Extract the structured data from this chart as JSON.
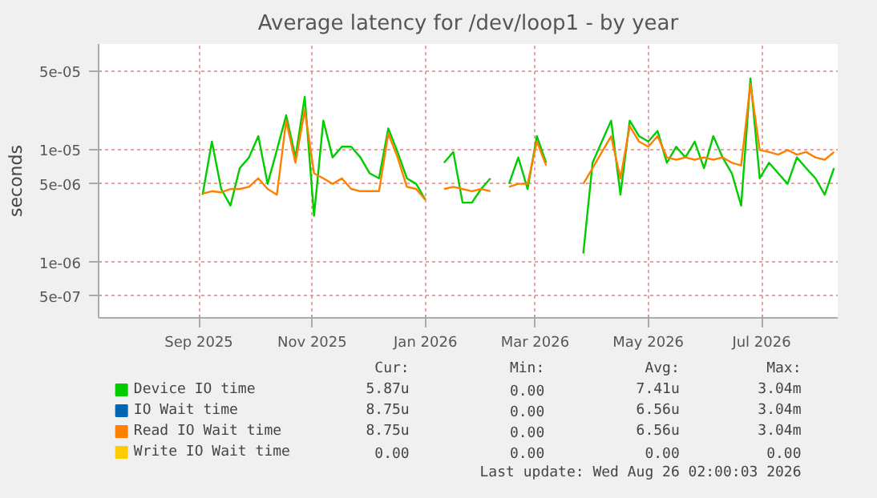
{
  "chart_data": {
    "type": "line",
    "title": "Average latency for /dev/loop1 - by year",
    "ylabel": "seconds",
    "x": [
      "2025-09-18",
      "2025-09-23",
      "2025-09-28",
      "2025-10-03",
      "2025-10-08",
      "2025-10-13",
      "2025-10-18",
      "2025-10-23",
      "2025-10-28",
      "2025-11-02",
      "2025-11-07",
      "2025-11-12",
      "2025-11-17",
      "2025-11-22",
      "2025-11-27",
      "2025-12-02",
      "2025-12-07",
      "2025-12-12",
      "2025-12-17",
      "2025-12-22",
      "2025-12-27",
      "2026-01-01",
      "2026-01-06",
      "2026-01-11",
      "2026-01-16",
      "2026-01-21",
      "2026-01-26",
      "2026-01-31",
      "2026-02-05",
      "2026-02-10",
      "2026-02-15",
      "2026-02-20",
      "2026-02-25",
      "2026-03-02",
      "2026-03-07",
      "2026-03-12",
      "2026-03-17",
      "2026-03-22",
      "2026-03-27",
      "2026-04-01",
      "2026-04-06",
      "2026-04-11",
      "2026-04-16",
      "2026-04-21",
      "2026-04-26",
      "2026-05-01",
      "2026-05-06",
      "2026-05-11",
      "2026-05-16",
      "2026-05-21",
      "2026-05-26",
      "2026-05-31",
      "2026-06-05",
      "2026-06-10",
      "2026-06-15",
      "2026-06-20",
      "2026-06-25",
      "2026-06-30",
      "2026-07-05",
      "2026-07-10",
      "2026-07-15",
      "2026-07-20",
      "2026-07-25",
      "2026-07-30",
      "2026-08-04",
      "2026-08-09",
      "2026-08-14",
      "2026-08-19",
      "2026-08-24"
    ],
    "series": [
      {
        "name": "Device IO time",
        "color": "#00cc00",
        "values": [
          4e-06,
          1.19e-05,
          4.5e-06,
          3.2e-06,
          6.9e-06,
          8.6e-06,
          1.33e-05,
          5e-06,
          1e-05,
          2.04e-05,
          8.6e-06,
          2.98e-05,
          2.6e-06,
          1.83e-05,
          8.6e-06,
          1.07e-05,
          1.07e-05,
          8.6e-06,
          6.2e-06,
          5.6e-06,
          1.56e-05,
          9.6e-06,
          5.6e-06,
          5e-06,
          3.6e-06,
          null,
          7.7e-06,
          9.6e-06,
          3.4e-06,
          3.4e-06,
          4.5e-06,
          5.6e-06,
          null,
          5e-06,
          8.6e-06,
          4.5e-06,
          1.33e-05,
          7.7e-06,
          null,
          null,
          null,
          1.2e-06,
          7.7e-06,
          1.19e-05,
          1.83e-05,
          4e-06,
          1.83e-05,
          1.33e-05,
          1.19e-05,
          1.48e-05,
          7.7e-06,
          1.07e-05,
          8.6e-06,
          1.19e-05,
          6.9e-06,
          1.33e-05,
          8.6e-06,
          6.2e-06,
          3.2e-06,
          4.35e-05,
          5.6e-06,
          7.7e-06,
          6.2e-06,
          5e-06,
          8.6e-06,
          6.9e-06,
          5.6e-06,
          4e-06,
          6.9e-06
        ]
      },
      {
        "name": "IO Wait time",
        "color": "#0066b3",
        "values": [
          null,
          null,
          null,
          null,
          null,
          null,
          null,
          null,
          null,
          null,
          null,
          null,
          null,
          null,
          null,
          null,
          null,
          null,
          null,
          null,
          null,
          null,
          null,
          null,
          null,
          null,
          null,
          null,
          null,
          null,
          null,
          null,
          null,
          null,
          null,
          null,
          null,
          null,
          null,
          null,
          null,
          null,
          null,
          null,
          null,
          null,
          null,
          null,
          null,
          null,
          null,
          null,
          null,
          null,
          null,
          null,
          null,
          null,
          null,
          null,
          null,
          null,
          null,
          null,
          null,
          null,
          null,
          null,
          null
        ]
      },
      {
        "name": "Read IO Wait time",
        "color": "#ff8000",
        "values": [
          4.1e-06,
          4.3e-06,
          4.2e-06,
          4.5e-06,
          4.5e-06,
          4.7e-06,
          5.6e-06,
          4.5e-06,
          4e-06,
          1.83e-05,
          7.7e-06,
          2.27e-05,
          6.2e-06,
          5.6e-06,
          5e-06,
          5.6e-06,
          4.5e-06,
          4.3e-06,
          4.3e-06,
          4.3e-06,
          1.4e-05,
          8.6e-06,
          4.7e-06,
          4.5e-06,
          3.6e-06,
          null,
          4.5e-06,
          4.7e-06,
          4.5e-06,
          4.3e-06,
          4.5e-06,
          4.3e-06,
          null,
          4.7e-06,
          5e-06,
          5e-06,
          1.19e-05,
          7.3e-06,
          null,
          null,
          null,
          5e-06,
          6.9e-06,
          9.6e-06,
          1.33e-05,
          5.6e-06,
          1.64e-05,
          1.19e-05,
          1.07e-05,
          1.33e-05,
          8.6e-06,
          8.2e-06,
          8.6e-06,
          8.2e-06,
          8.6e-06,
          8.2e-06,
          8.6e-06,
          7.7e-06,
          7.3e-06,
          3.9e-05,
          1e-05,
          9.6e-06,
          9.1e-06,
          1e-05,
          9.1e-06,
          9.6e-06,
          8.6e-06,
          8.2e-06,
          9.6e-06
        ]
      },
      {
        "name": "Write IO Wait time",
        "color": "#ffcc00",
        "values": [
          null,
          null,
          null,
          null,
          null,
          null,
          null,
          null,
          null,
          null,
          null,
          null,
          null,
          null,
          null,
          null,
          null,
          null,
          null,
          null,
          null,
          null,
          null,
          null,
          null,
          null,
          null,
          null,
          null,
          null,
          null,
          null,
          null,
          null,
          null,
          null,
          null,
          null,
          null,
          null,
          null,
          null,
          null,
          null,
          null,
          null,
          null,
          null,
          null,
          null,
          null,
          null,
          null,
          null,
          null,
          null,
          null,
          null,
          null,
          null,
          null,
          null,
          null,
          null,
          null,
          null,
          null,
          null,
          null
        ]
      }
    ],
    "xlim": [
      "2025-07-24",
      "2026-08-26"
    ],
    "xticks": [
      {
        "value": "2025-09-16",
        "label": "Sep 2025"
      },
      {
        "value": "2025-11-16",
        "label": "Nov 2025"
      },
      {
        "value": "2026-01-16",
        "label": "Jan 2026"
      },
      {
        "value": "2026-03-16",
        "label": "Mar 2026"
      },
      {
        "value": "2026-05-16",
        "label": "May 2026"
      },
      {
        "value": "2026-07-16",
        "label": "Jul 2026"
      }
    ],
    "ylim": [
      3.2e-07,
      8.8e-05
    ],
    "yticks": [
      {
        "value": 5e-07,
        "label": "5e-07"
      },
      {
        "value": 1e-06,
        "label": "1e-06"
      },
      {
        "value": 5e-06,
        "label": "5e-06"
      },
      {
        "value": 1e-05,
        "label": "1e-05"
      },
      {
        "value": 5e-05,
        "label": "5e-05"
      }
    ],
    "log": "y",
    "grid": true,
    "legend": "bottom",
    "marker": "none",
    "line_style": "solid",
    "annotations": [
      "Cur:",
      "Min:",
      "Avg:",
      "Max:",
      "5.87u",
      "0.00",
      "7.41u",
      "3.04m",
      "8.75u",
      "0.00",
      "6.56u",
      "3.04m",
      "8.75u",
      "0.00",
      "6.56u",
      "3.04m",
      "0.00",
      "0.00",
      "0.00",
      "0.00",
      "Last update: Wed Aug 26 02:00:03 2026"
    ]
  }
}
